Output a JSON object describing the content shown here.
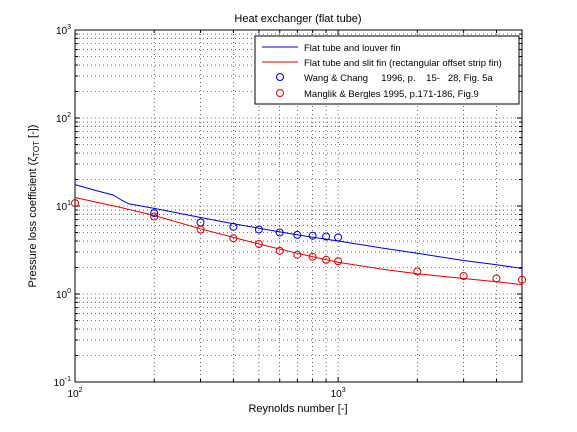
{
  "chart_data": {
    "type": "line",
    "title": "Heat exchanger (flat tube)",
    "xlabel": "Reynolds number [-]",
    "ylabel": "Pressure loss coefficient (ζ",
    "ylabel_sub": "TOT",
    "ylabel_tail": " [-])",
    "xscale": "log",
    "yscale": "log",
    "xlim": [
      100,
      5000
    ],
    "ylim": [
      0.1,
      1000
    ],
    "grid": true,
    "legend_position": "top-right",
    "x_ticks": [
      {
        "base": "10",
        "exp": "2",
        "value": 100
      },
      {
        "base": "10",
        "exp": "3",
        "value": 1000
      }
    ],
    "y_ticks": [
      {
        "base": "10",
        "exp": "-1",
        "value": 0.1
      },
      {
        "base": "10",
        "exp": "0",
        "value": 1
      },
      {
        "base": "10",
        "exp": "1",
        "value": 10
      },
      {
        "base": "10",
        "exp": "2",
        "value": 100
      },
      {
        "base": "10",
        "exp": "3",
        "value": 1000
      }
    ],
    "series": [
      {
        "name": "Flat tube and louver fin",
        "kind": "line",
        "color": "#0000cc",
        "x": [
          100,
          120,
          140,
          150,
          160,
          200,
          300,
          400,
          500,
          700,
          1000,
          1500,
          2000,
          3000,
          4000,
          5000
        ],
        "y": [
          17.5,
          15.0,
          13.3,
          11.7,
          10.6,
          9.4,
          7.4,
          6.3,
          5.6,
          4.7,
          4.0,
          3.3,
          2.9,
          2.4,
          2.15,
          1.95
        ]
      },
      {
        "name": "Flat tube and slit fin (rectangular offset strip fin)",
        "kind": "line",
        "color": "#dd0000",
        "x": [
          100,
          150,
          200,
          300,
          400,
          500,
          700,
          1000,
          1500,
          2000,
          3000,
          4000,
          5000
        ],
        "y": [
          12.5,
          9.6,
          7.8,
          5.5,
          4.4,
          3.7,
          2.9,
          2.3,
          1.9,
          1.7,
          1.5,
          1.38,
          1.28
        ]
      },
      {
        "name": "Wang & Chang     1996, p.    15-   28, Fig. 5a",
        "kind": "markers",
        "color": "#0000cc",
        "x": [
          200,
          300,
          400,
          500,
          600,
          700,
          800,
          900,
          1000
        ],
        "y": [
          8.3,
          6.5,
          5.8,
          5.4,
          5.0,
          4.7,
          4.6,
          4.5,
          4.4
        ]
      },
      {
        "name": "Manglik & Bergles 1995, p.171-186, Fig.9",
        "kind": "markers",
        "color": "#dd0000",
        "x": [
          100,
          200,
          300,
          400,
          500,
          600,
          700,
          800,
          900,
          1000,
          2000,
          3000,
          4000,
          5000
        ],
        "y": [
          10.8,
          7.6,
          5.4,
          4.3,
          3.7,
          3.1,
          2.8,
          2.65,
          2.45,
          2.35,
          1.8,
          1.6,
          1.5,
          1.45
        ]
      }
    ]
  }
}
